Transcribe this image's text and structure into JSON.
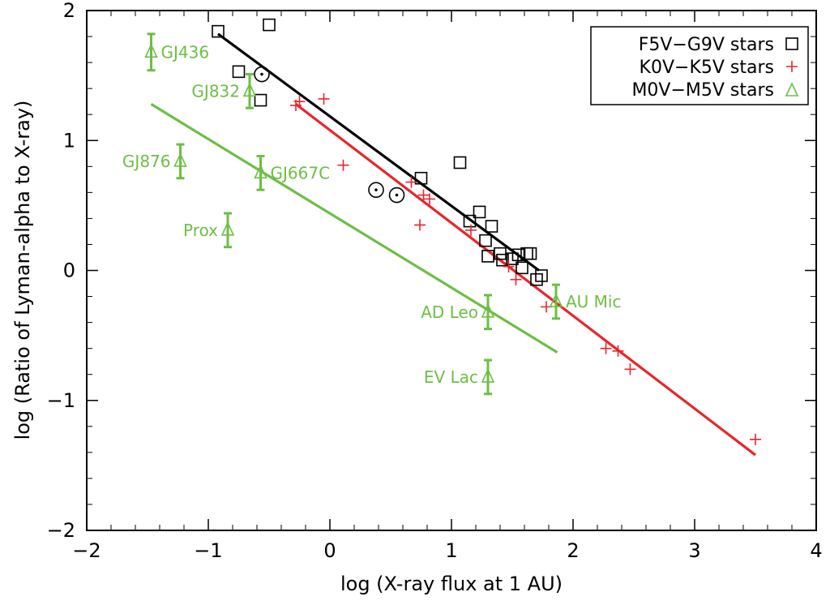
{
  "chart_data": {
    "type": "scatter",
    "xlabel": "log (X-ray flux at 1 AU)",
    "ylabel": "log (Ratio of Lyman-alpha to X-ray)",
    "xlim": [
      -2,
      4
    ],
    "ylim": [
      -2,
      2
    ],
    "x_ticks": [
      "−2",
      "−1",
      "0",
      "1",
      "2",
      "3",
      "4"
    ],
    "y_ticks": [
      "−2",
      "−1",
      "0",
      "1",
      "2"
    ],
    "x_tick_values": [
      -2,
      -1,
      0,
      1,
      2,
      3,
      4
    ],
    "y_tick_values": [
      -2,
      -1,
      0,
      1,
      2
    ],
    "colors": {
      "g_stars": "#000000",
      "k_stars": "#e8262b",
      "m_stars": "#6cbf44"
    },
    "legend": {
      "position": "top-right",
      "entries": [
        {
          "label": "F5V−G9V stars",
          "marker": "square"
        },
        {
          "label": "K0V−K5V stars",
          "marker": "plus"
        },
        {
          "label": "M0V−M5V stars",
          "marker": "triangle"
        }
      ]
    },
    "series": [
      {
        "name": "F5V−G9V stars",
        "marker": "square",
        "points": [
          [
            -0.92,
            1.84
          ],
          [
            -0.5,
            1.89
          ],
          [
            -0.75,
            1.53
          ],
          [
            -0.57,
            1.31
          ],
          [
            0.75,
            0.71
          ],
          [
            1.07,
            0.83
          ],
          [
            1.15,
            0.38
          ],
          [
            1.23,
            0.45
          ],
          [
            1.33,
            0.34
          ],
          [
            1.28,
            0.23
          ],
          [
            1.3,
            0.11
          ],
          [
            1.4,
            0.13
          ],
          [
            1.42,
            0.08
          ],
          [
            1.5,
            0.09
          ],
          [
            1.55,
            0.12
          ],
          [
            1.58,
            0.02
          ],
          [
            1.62,
            0.13
          ],
          [
            1.65,
            0.13
          ],
          [
            1.7,
            -0.07
          ],
          [
            1.74,
            -0.04
          ]
        ]
      },
      {
        "name": "Sun",
        "marker": "sun",
        "points": [
          [
            -0.56,
            1.51
          ],
          [
            0.38,
            0.62
          ],
          [
            0.55,
            0.58
          ]
        ]
      },
      {
        "name": "K0V−K5V stars",
        "marker": "plus",
        "points": [
          [
            -0.28,
            1.27
          ],
          [
            -0.25,
            1.3
          ],
          [
            -0.05,
            1.32
          ],
          [
            0.11,
            0.81
          ],
          [
            0.67,
            0.68
          ],
          [
            0.74,
            0.35
          ],
          [
            0.77,
            0.58
          ],
          [
            0.82,
            0.55
          ],
          [
            1.16,
            0.31
          ],
          [
            1.47,
            0.03
          ],
          [
            1.53,
            -0.07
          ],
          [
            1.78,
            -0.28
          ],
          [
            2.27,
            -0.6
          ],
          [
            2.37,
            -0.62
          ],
          [
            2.47,
            -0.76
          ],
          [
            3.5,
            -1.3
          ]
        ]
      },
      {
        "name": "M0V−M5V stars",
        "marker": "triangle",
        "points": [
          {
            "label": "GJ436",
            "x": -1.47,
            "y": 1.68,
            "err": 0.14
          },
          {
            "label": "GJ832",
            "x": -0.66,
            "y": 1.38,
            "err": 0.13
          },
          {
            "label": "GJ876",
            "x": -1.23,
            "y": 0.84,
            "err": 0.13
          },
          {
            "label": "GJ667C",
            "x": -0.57,
            "y": 0.75,
            "err": 0.13
          },
          {
            "label": "Prox",
            "x": -0.84,
            "y": 0.31,
            "err": 0.13
          },
          {
            "label": "AD Leo",
            "x": 1.3,
            "y": -0.32,
            "err": 0.13
          },
          {
            "label": "AU Mic",
            "x": 1.86,
            "y": -0.24,
            "err": 0.13
          },
          {
            "label": "EV Lac",
            "x": 1.3,
            "y": -0.82,
            "err": 0.13
          }
        ]
      }
    ],
    "fit_lines": [
      {
        "color_key": "g_stars",
        "x": [
          -0.92,
          1.72
        ],
        "y": [
          1.82,
          0.0
        ]
      },
      {
        "color_key": "k_stars",
        "x": [
          -0.28,
          3.5
        ],
        "y": [
          1.28,
          -1.42
        ]
      },
      {
        "color_key": "m_stars",
        "x": [
          -1.47,
          1.87
        ],
        "y": [
          1.28,
          -0.63
        ]
      }
    ]
  }
}
